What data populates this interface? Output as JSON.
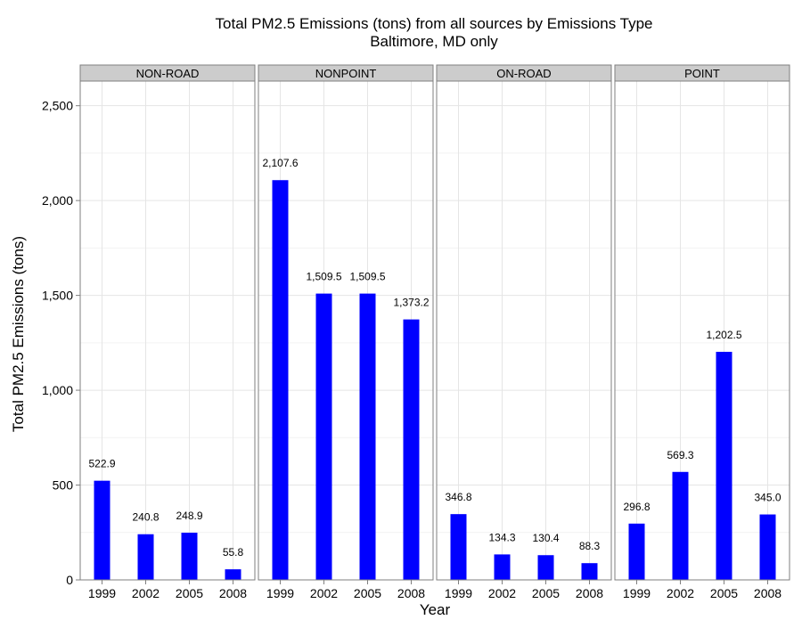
{
  "chart_data": {
    "type": "bar",
    "title": "Total PM2.5 Emissions (tons) from all sources by Emissions Type",
    "subtitle": "Baltimore, MD only",
    "xlabel": "Year",
    "ylabel": "Total PM2.5 Emissions (tons)",
    "ylim": [
      0,
      2630
    ],
    "yticks": [
      0,
      500,
      1000,
      1500,
      2000,
      2500
    ],
    "ytick_labels": [
      "0",
      "500",
      "1,000",
      "1,500",
      "2,000",
      "2,500"
    ],
    "categories": [
      "1999",
      "2002",
      "2005",
      "2008"
    ],
    "grid": true,
    "bar_color": "#0000ff",
    "strip_color": "#cccccc",
    "panels": [
      {
        "name": "NON-ROAD",
        "values": [
          522.9,
          240.8,
          248.9,
          55.8
        ],
        "labels": [
          "522.9",
          "240.8",
          "248.9",
          "55.8"
        ]
      },
      {
        "name": "NONPOINT",
        "values": [
          2107.6,
          1509.5,
          1509.5,
          1373.2
        ],
        "labels": [
          "2,107.6",
          "1,509.5",
          "1,509.5",
          "1,373.2"
        ]
      },
      {
        "name": "ON-ROAD",
        "values": [
          346.8,
          134.3,
          130.4,
          88.3
        ],
        "labels": [
          "346.8",
          "134.3",
          "130.4",
          "88.3"
        ]
      },
      {
        "name": "POINT",
        "values": [
          296.8,
          569.3,
          1202.5,
          345.0
        ],
        "labels": [
          "296.8",
          "569.3",
          "1,202.5",
          "345.0"
        ]
      }
    ]
  }
}
